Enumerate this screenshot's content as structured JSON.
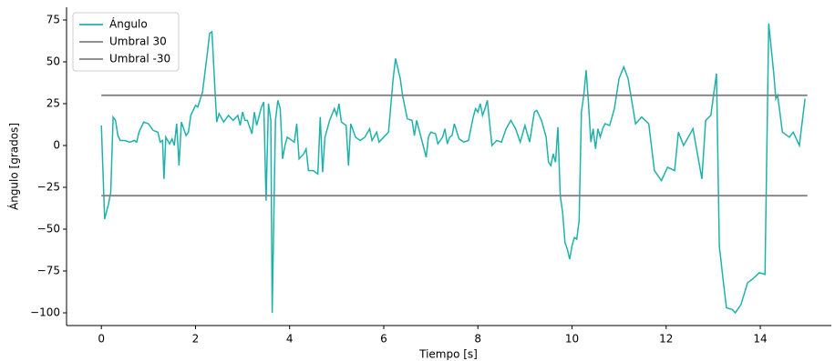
{
  "chart_data": {
    "type": "line",
    "xlabel": "Tiempo [s]",
    "ylabel": "Ángulo [grados]",
    "xlim": [
      -0.74,
      15.51
    ],
    "ylim": [
      -107.6,
      82.6
    ],
    "xticks": [
      0,
      2,
      4,
      6,
      8,
      10,
      12,
      14
    ],
    "yticks": [
      {
        "value": -100,
        "label": "−100"
      },
      {
        "value": -75,
        "label": "−75"
      },
      {
        "value": -50,
        "label": "−50"
      },
      {
        "value": -25,
        "label": "−25"
      },
      0,
      25,
      50,
      75
    ],
    "legend": "upper left",
    "series": [
      {
        "name": "Ángulo",
        "color": "#20b2aa",
        "x": [
          0,
          0.07,
          0.15,
          0.2,
          0.25,
          0.3,
          0.35,
          0.4,
          0.5,
          0.6,
          0.7,
          0.75,
          0.8,
          0.9,
          1.0,
          1.1,
          1.2,
          1.25,
          1.3,
          1.33,
          1.37,
          1.45,
          1.5,
          1.55,
          1.6,
          1.65,
          1.7,
          1.8,
          1.85,
          1.9,
          2.0,
          2.05,
          2.15,
          2.25,
          2.3,
          2.35,
          2.45,
          2.5,
          2.6,
          2.7,
          2.8,
          2.9,
          2.95,
          3.0,
          3.05,
          3.1,
          3.2,
          3.25,
          3.3,
          3.4,
          3.45,
          3.5,
          3.55,
          3.6,
          3.63,
          3.7,
          3.75,
          3.8,
          3.85,
          3.9,
          3.95,
          4.0,
          4.1,
          4.15,
          4.2,
          4.3,
          4.35,
          4.4,
          4.5,
          4.6,
          4.65,
          4.7,
          4.75,
          4.85,
          4.95,
          5.0,
          5.05,
          5.1,
          5.2,
          5.25,
          5.3,
          5.4,
          5.5,
          5.55,
          5.6,
          5.7,
          5.75,
          5.85,
          5.9,
          6.0,
          6.1,
          6.2,
          6.25,
          6.35,
          6.4,
          6.5,
          6.6,
          6.65,
          6.7,
          6.8,
          6.9,
          6.95,
          7.0,
          7.1,
          7.15,
          7.25,
          7.3,
          7.35,
          7.4,
          7.45,
          7.5,
          7.6,
          7.7,
          7.8,
          7.9,
          7.95,
          8.0,
          8.05,
          8.1,
          8.15,
          8.2,
          8.25,
          8.3,
          8.4,
          8.5,
          8.6,
          8.7,
          8.8,
          8.9,
          9.0,
          9.1,
          9.2,
          9.25,
          9.35,
          9.45,
          9.5,
          9.55,
          9.6,
          9.65,
          9.7,
          9.75,
          9.8,
          9.85,
          9.9,
          9.95,
          10.0,
          10.05,
          10.1,
          10.15,
          10.2,
          10.25,
          10.3,
          10.35,
          10.4,
          10.45,
          10.5,
          10.55,
          10.6,
          10.65,
          10.7,
          10.8,
          10.9,
          11.0,
          11.1,
          11.19,
          11.35,
          11.48,
          11.63,
          11.75,
          11.9,
          12.03,
          12.18,
          12.26,
          12.37,
          12.57,
          12.76,
          12.84,
          12.95,
          13.07,
          13.13,
          13.21,
          13.28,
          13.4,
          13.47,
          13.59,
          13.73,
          13.83,
          13.98,
          14.1,
          14.18,
          14.29,
          14.33,
          14.37,
          14.47,
          14.62,
          14.7,
          14.83,
          14.95
        ],
        "values": [
          12,
          -44,
          -35,
          -28,
          17,
          15,
          6,
          3,
          3,
          2,
          3,
          2,
          8,
          14,
          13,
          9,
          8,
          2,
          3,
          -20,
          5,
          1,
          4,
          0,
          13,
          -12,
          14,
          6,
          8,
          18,
          24,
          23,
          32,
          55,
          67,
          68,
          14,
          19,
          14,
          18,
          15,
          18,
          12,
          20,
          15,
          15,
          7,
          20,
          12,
          23,
          26,
          -33,
          25,
          15,
          -100,
          15,
          27,
          22,
          -8,
          0,
          5,
          4,
          2,
          13,
          -8,
          -5,
          -2,
          -15,
          -15,
          -17,
          17,
          -16,
          5,
          15,
          22,
          18,
          25,
          14,
          12,
          -12,
          13,
          5,
          3,
          4,
          5,
          10,
          3,
          8,
          2,
          5,
          8,
          40,
          52,
          40,
          30,
          16,
          15,
          6,
          15,
          4,
          -7,
          5,
          8,
          7,
          1,
          5,
          10,
          1,
          5,
          6,
          13,
          4,
          2,
          3,
          17,
          22,
          20,
          25,
          18,
          22,
          27,
          13,
          0,
          3,
          2,
          10,
          15,
          10,
          2,
          12,
          2,
          20,
          21,
          15,
          5,
          -10,
          -12,
          -5,
          -10,
          11,
          -30,
          -40,
          -58,
          -62,
          -68,
          -60,
          -55,
          -56,
          -45,
          20,
          30,
          45,
          25,
          2,
          10,
          -2,
          10,
          5,
          10,
          13,
          12,
          22,
          40,
          47,
          40,
          13,
          17,
          13,
          -15,
          -21,
          -13,
          -15,
          8,
          0,
          10,
          -20,
          15,
          18,
          43,
          -60,
          -80,
          -97,
          -98,
          -100,
          -95,
          -82,
          -80,
          -76,
          -77,
          73,
          42,
          28,
          30,
          8,
          5,
          8,
          0,
          28
        ]
      },
      {
        "name": "Umbral 30",
        "color": "#808080",
        "x": [
          0,
          15
        ],
        "values": [
          30,
          30
        ]
      },
      {
        "name": "Umbral -30",
        "color": "#808080",
        "x": [
          0,
          15
        ],
        "values": [
          -30,
          -30
        ]
      }
    ]
  }
}
